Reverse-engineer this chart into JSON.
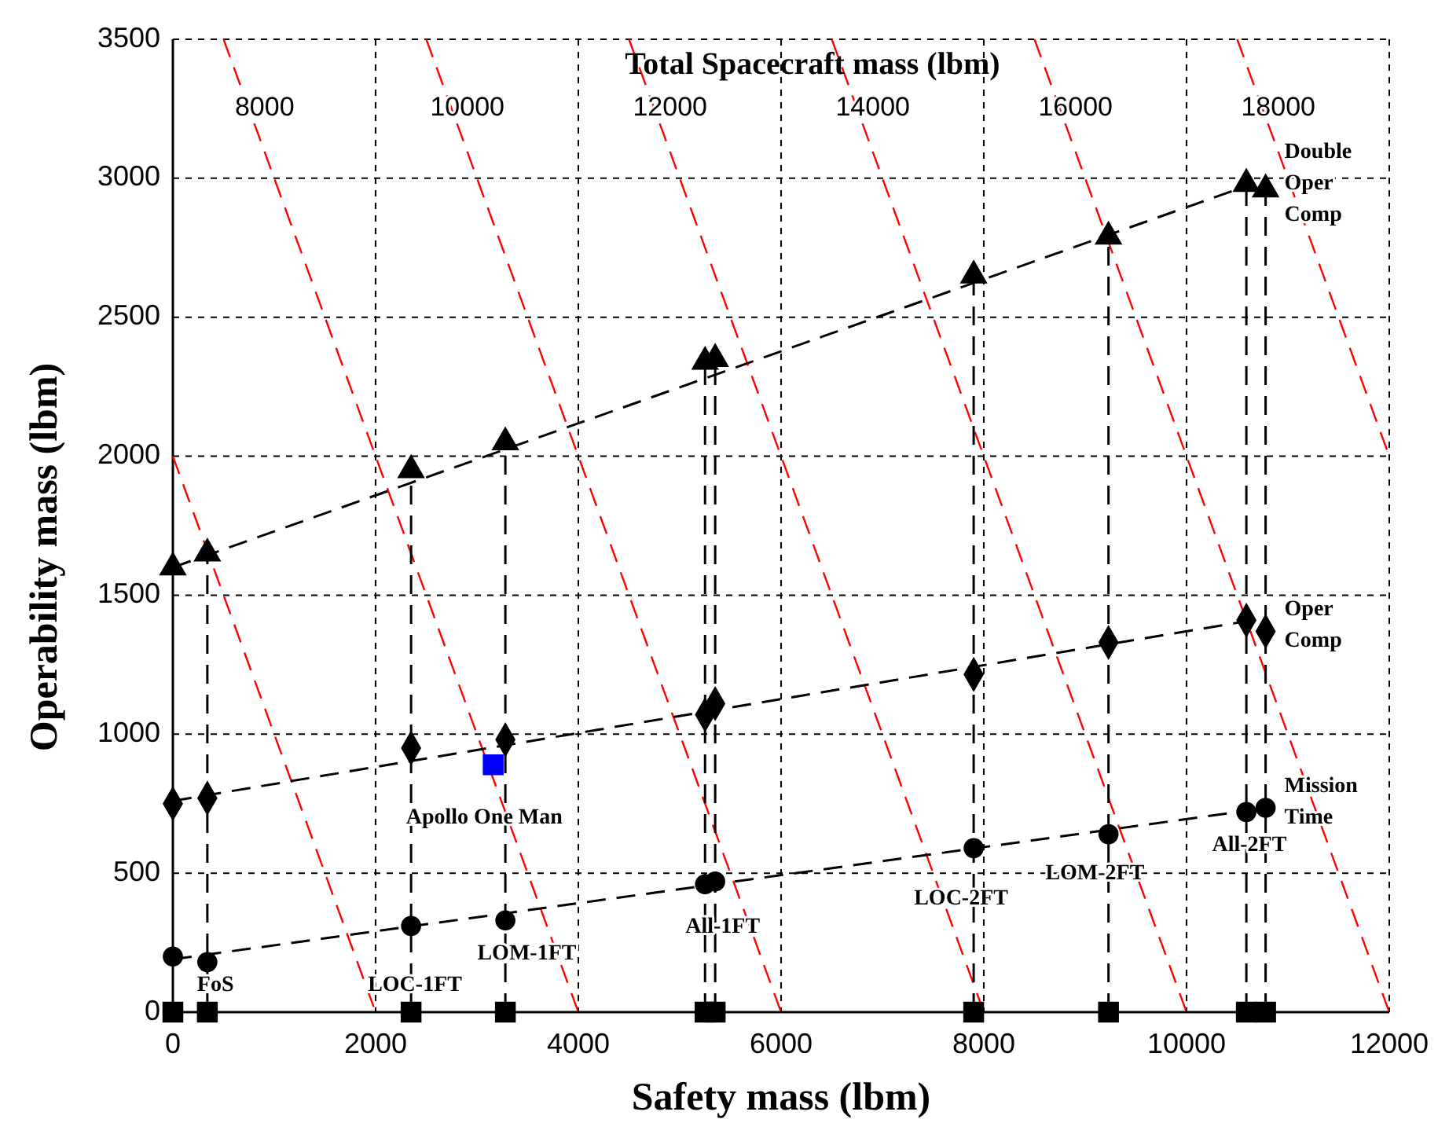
{
  "chart_data": {
    "type": "scatter",
    "title": "Total Spacecraft mass (lbm)",
    "xlabel": "Safety mass (lbm)",
    "ylabel": "Operability mass (lbm)",
    "xlim": [
      0,
      12000
    ],
    "ylim": [
      0,
      3500
    ],
    "xticks": [
      0,
      2000,
      4000,
      6000,
      8000,
      10000,
      12000
    ],
    "yticks": [
      0,
      500,
      1000,
      1500,
      2000,
      2500,
      3000,
      3500
    ],
    "grid": true,
    "legend": false,
    "series": [
      {
        "type": "line",
        "color": "#ff0000",
        "line_style": "dashed",
        "x": [
          0,
          2000
        ],
        "values": [
          2000,
          0
        ]
      },
      {
        "name": "8000",
        "type": "line",
        "color": "#ff0000",
        "line_style": "dashed",
        "x": [
          500,
          4000
        ],
        "values": [
          3500,
          0
        ]
      },
      {
        "name": "10000",
        "type": "line",
        "color": "#ff0000",
        "line_style": "dashed",
        "x": [
          2500,
          6000
        ],
        "values": [
          3500,
          0
        ]
      },
      {
        "name": "12000",
        "type": "line",
        "color": "#ff0000",
        "line_style": "dashed",
        "x": [
          4500,
          8000
        ],
        "values": [
          3500,
          0
        ]
      },
      {
        "name": "14000",
        "type": "line",
        "color": "#ff0000",
        "line_style": "dashed",
        "x": [
          6500,
          10000
        ],
        "values": [
          3500,
          0
        ]
      },
      {
        "name": "16000",
        "type": "line",
        "color": "#ff0000",
        "line_style": "dashed",
        "x": [
          8500,
          12000
        ],
        "values": [
          3500,
          0
        ]
      },
      {
        "name": "18000",
        "type": "line",
        "color": "#ff0000",
        "line_style": "dashed",
        "x": [
          10500,
          12000
        ],
        "values": [
          3500,
          2000
        ]
      },
      {
        "type": "line",
        "color": "#000000",
        "line_style": "dashed",
        "x": [
          340,
          340
        ],
        "values": [
          0,
          1650
        ]
      },
      {
        "type": "line",
        "color": "#000000",
        "line_style": "dashed",
        "x": [
          2350,
          2350
        ],
        "values": [
          0,
          1950
        ]
      },
      {
        "type": "line",
        "color": "#000000",
        "line_style": "dashed",
        "x": [
          3280,
          3280
        ],
        "values": [
          0,
          2050
        ]
      },
      {
        "type": "line",
        "color": "#000000",
        "line_style": "dashed",
        "x": [
          5250,
          5250
        ],
        "values": [
          0,
          2340
        ]
      },
      {
        "type": "line",
        "color": "#000000",
        "line_style": "dashed",
        "x": [
          5350,
          5350
        ],
        "values": [
          0,
          2350
        ]
      },
      {
        "type": "line",
        "color": "#000000",
        "line_style": "dashed",
        "x": [
          7900,
          7900
        ],
        "values": [
          0,
          2650
        ]
      },
      {
        "type": "line",
        "color": "#000000",
        "line_style": "dashed",
        "x": [
          9230,
          9230
        ],
        "values": [
          0,
          2790
        ]
      },
      {
        "type": "line",
        "color": "#000000",
        "line_style": "dashed",
        "x": [
          10590,
          10590
        ],
        "values": [
          0,
          2980
        ]
      },
      {
        "type": "line",
        "color": "#000000",
        "line_style": "dashed",
        "x": [
          10780,
          10780
        ],
        "values": [
          0,
          2960
        ]
      },
      {
        "type": "line",
        "color": "#000000",
        "line_style": "dashed",
        "x": [
          0,
          10650
        ],
        "values": [
          1600,
          2980
        ]
      },
      {
        "type": "line",
        "color": "#000000",
        "line_style": "dashed",
        "x": [
          0,
          10650
        ],
        "values": [
          760,
          1410
        ]
      },
      {
        "type": "line",
        "color": "#000000",
        "line_style": "dashed",
        "x": [
          0,
          10700
        ],
        "values": [
          190,
          730
        ]
      },
      {
        "name": "Double Oper Comp",
        "marker": "triangle",
        "color": "#000000",
        "x": [
          0,
          340,
          2350,
          3280,
          5250,
          5350,
          7900,
          9230,
          10590,
          10780
        ],
        "values": [
          1600,
          1650,
          1950,
          2050,
          2340,
          2350,
          2650,
          2790,
          2980,
          2960
        ]
      },
      {
        "name": "Oper Comp",
        "marker": "diamond",
        "color": "#000000",
        "x": [
          0,
          340,
          2350,
          3280,
          5250,
          5350,
          7900,
          9230,
          10590,
          10780
        ],
        "values": [
          750,
          770,
          950,
          980,
          1070,
          1110,
          1215,
          1330,
          1410,
          1370
        ]
      },
      {
        "name": "Mission Time",
        "marker": "circle",
        "color": "#000000",
        "x": [
          0,
          340,
          2350,
          3280,
          5250,
          5350,
          7900,
          9230,
          10590,
          10780
        ],
        "values": [
          200,
          180,
          310,
          330,
          460,
          470,
          590,
          640,
          720,
          735
        ]
      },
      {
        "marker": "square",
        "color": "#000000",
        "x": [
          0,
          340,
          2350,
          3280,
          5250,
          5350,
          7900,
          9230,
          10590,
          10780
        ],
        "values": [
          0,
          0,
          0,
          0,
          0,
          0,
          0,
          0,
          0,
          0
        ]
      },
      {
        "marker": "square",
        "color": "#0000ff",
        "x": [
          3160
        ],
        "values": [
          890
        ]
      }
    ],
    "annotations": [
      "FoS",
      "LOC-1FT",
      "Apollo One Man",
      "LOM-1FT",
      "All-1FT",
      "LOC-2FT",
      "LOM-2FT",
      "All-2FT"
    ]
  }
}
